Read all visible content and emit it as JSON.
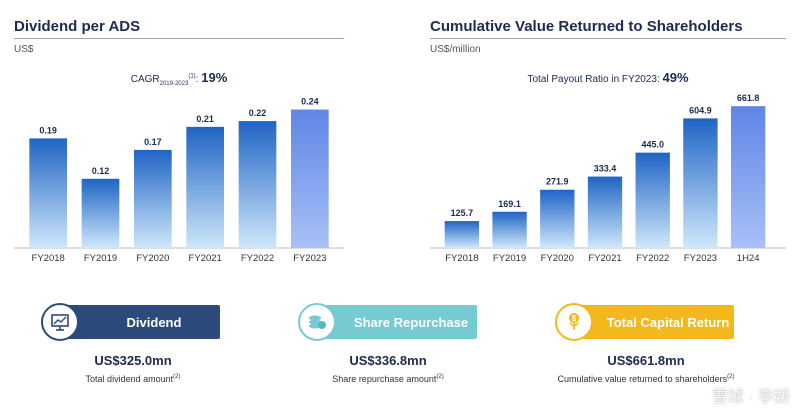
{
  "left_panel": {
    "title": "Dividend per ADS",
    "unit": "US$",
    "note_prefix": "CAGR",
    "note_sub": "2019-2023",
    "note_sup": "(1)",
    "note_sep": ":",
    "note_value": "19%"
  },
  "right_panel": {
    "title": "Cumulative Value Returned to Shareholders",
    "unit": "US$/million",
    "note_prefix": "Total Payout Ratio in FY2023:",
    "note_value": "49%"
  },
  "chart_data": [
    {
      "type": "bar",
      "title": "Dividend per ADS",
      "ylabel": "US$",
      "categories": [
        "FY2018",
        "FY2019",
        "FY2020",
        "FY2021",
        "FY2022",
        "FY2023"
      ],
      "values": [
        0.19,
        0.12,
        0.17,
        0.21,
        0.22,
        0.24
      ],
      "labels": [
        "0.19",
        "0.12",
        "0.17",
        "0.21",
        "0.22",
        "0.24"
      ],
      "ylim": [
        0,
        0.26
      ],
      "highlight_index": 5
    },
    {
      "type": "bar",
      "title": "Cumulative Value Returned to Shareholders",
      "ylabel": "US$/million",
      "categories": [
        "FY2018",
        "FY2019",
        "FY2020",
        "FY2021",
        "FY2022",
        "FY2023",
        "1H24"
      ],
      "values": [
        125.7,
        169.1,
        271.9,
        333.4,
        445.0,
        604.9,
        661.8
      ],
      "labels": [
        "125.7",
        "169.1",
        "271.9",
        "333.4",
        "445.0",
        "604.9",
        "661.8"
      ],
      "ylim": [
        0,
        700
      ],
      "highlight_index": 6
    }
  ],
  "cards": [
    {
      "label": "Dividend",
      "value": "US$325.0mn",
      "desc": "Total dividend amount",
      "sup": "(2)",
      "color": "#2d4a7d",
      "icon": "presentation-chart-icon"
    },
    {
      "label": "Share Repurchase",
      "value": "US$336.8mn",
      "desc": "Share repurchase amount",
      "sup": "(2)",
      "color": "#76cbd3",
      "icon": "coins-stack-icon"
    },
    {
      "label": "Total Capital Return",
      "value": "US$661.8mn",
      "desc": "Cumulative value returned to shareholders",
      "sup": "(2)",
      "color": "#f3b81a",
      "icon": "money-plant-icon"
    }
  ],
  "watermark": "雪球 · 李妍",
  "colors": {
    "bar_top": "#1f64c4",
    "bar_bottom": "#cfe8fb",
    "highlight_top": "#5f86e6",
    "highlight_bottom": "#a8c0f6"
  }
}
